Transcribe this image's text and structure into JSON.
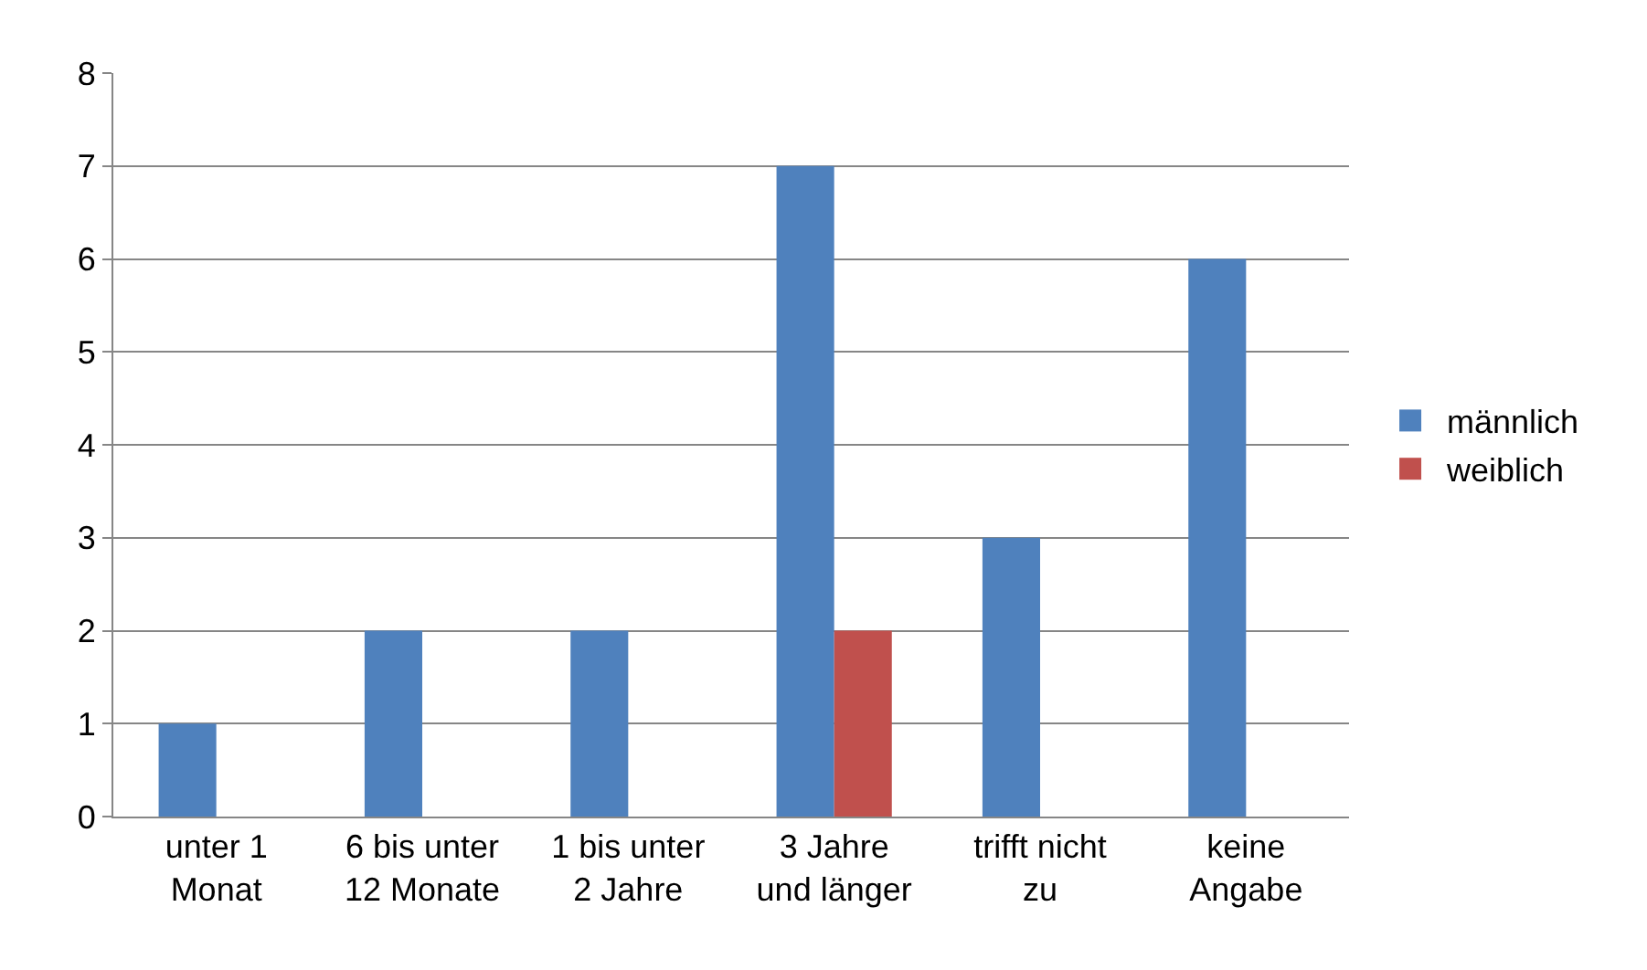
{
  "chart_data": {
    "type": "bar",
    "categories": [
      "unter 1\nMonat",
      "6 bis unter\n12 Monate",
      "1 bis unter\n2 Jahre",
      "3 Jahre\nund länger",
      "trifft nicht\nzu",
      "keine\nAngabe"
    ],
    "series": [
      {
        "name": "männlich",
        "color": "#4f81bd",
        "values": [
          1,
          2,
          2,
          7,
          3,
          6
        ]
      },
      {
        "name": "weiblich",
        "color": "#c0504d",
        "values": [
          null,
          null,
          null,
          2,
          null,
          null
        ]
      }
    ],
    "ylim": [
      0,
      8
    ],
    "yticks": [
      0,
      1,
      2,
      3,
      4,
      5,
      6,
      7,
      8
    ],
    "grid": "y",
    "legend": "right"
  }
}
